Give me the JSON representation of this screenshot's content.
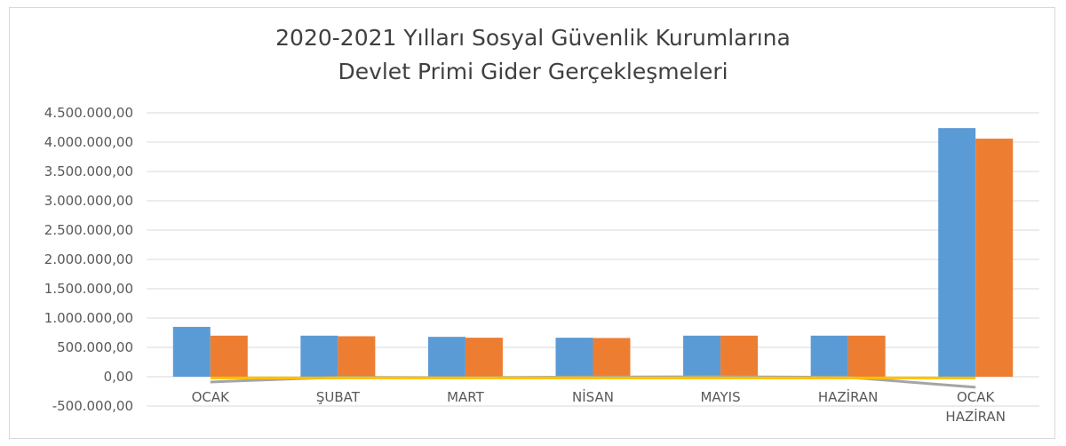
{
  "chart_data": {
    "type": "bar",
    "title": "2020-2021 Yılları Sosyal Güvenlik Kurumlarına Devlet Primi Gider Gerçekleşmeleri",
    "categories": [
      "OCAK",
      "ŞUBAT",
      "MART",
      "NİSAN",
      "MAYIS",
      "HAZİRAN",
      "OCAK HAZİRAN"
    ],
    "series": [
      {
        "color": "#5b9bd5",
        "values": [
          850000,
          700000,
          680000,
          665000,
          700000,
          700000,
          4240000
        ]
      },
      {
        "color": "#ed7d31",
        "values": [
          700000,
          690000,
          665000,
          660000,
          700000,
          700000,
          4060000
        ]
      },
      {
        "type": "line",
        "color": "#a5a5a5",
        "values": [
          -90000,
          -10000,
          -15000,
          -5000,
          0,
          -10000,
          -180000
        ]
      },
      {
        "type": "line",
        "color": "#ffc000",
        "values": [
          -20000,
          -20000,
          -20000,
          -20000,
          -20000,
          -20000,
          -20000
        ]
      }
    ],
    "ylim": [
      -500000,
      4500000
    ],
    "yticks": [
      {
        "value": -500000,
        "label": "-500.000,00"
      },
      {
        "value": 0,
        "label": "0,00"
      },
      {
        "value": 500000,
        "label": "500.000,00"
      },
      {
        "value": 1000000,
        "label": "1.000.000,00"
      },
      {
        "value": 1500000,
        "label": "1.500.000,00"
      },
      {
        "value": 2000000,
        "label": "2.000.000,00"
      },
      {
        "value": 2500000,
        "label": "2.500.000,00"
      },
      {
        "value": 3000000,
        "label": "3.000.000,00"
      },
      {
        "value": 3500000,
        "label": "3.500.000,00"
      },
      {
        "value": 4000000,
        "label": "4.000.000,00"
      },
      {
        "value": 4500000,
        "label": "4.500.000,00"
      }
    ],
    "grid": true
  }
}
